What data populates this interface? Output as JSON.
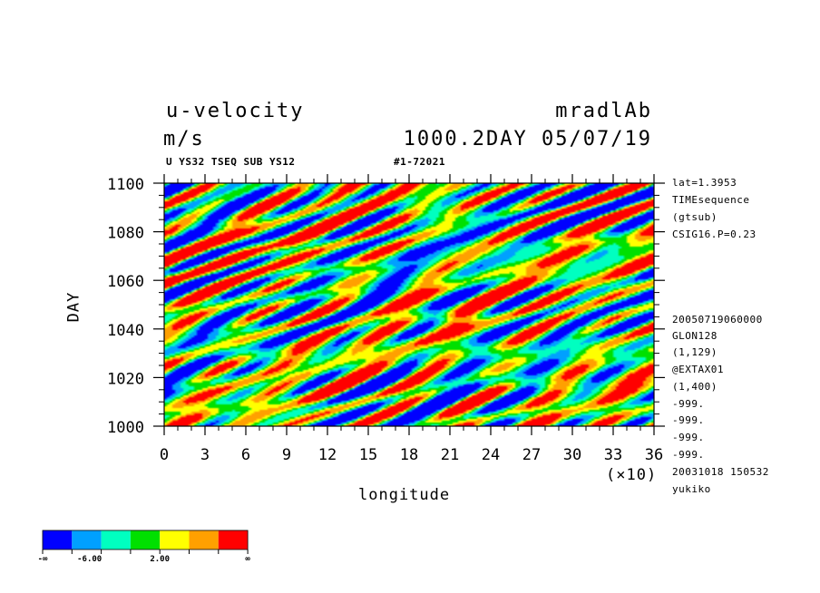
{
  "header": {
    "title_left_1": "u-velocity",
    "title_left_2": "m/s",
    "title_right_1": "mradlAb",
    "title_right_2": "1000.2DAY 05/07/19",
    "subtitle_left": "U YS32 TSEQ SUB YS12",
    "subtitle_right": "#1-72021"
  },
  "side_info": {
    "top": [
      "lat=1.3953",
      "TIMEsequence",
      "(gtsub)",
      "CSIG16.P=0.23"
    ],
    "bottom": [
      "20050719060000",
      "GLON128",
      "(1,129)",
      "@EXTAX01",
      "(1,400)",
      "-999.",
      "-999.",
      "-999.",
      "-999.",
      "20031018 150532",
      "yukiko"
    ]
  },
  "chart_data": {
    "type": "heatmap",
    "title": "u-velocity",
    "units": "m/s",
    "xlabel": "longitude",
    "x_multiplier_label": "(×10)",
    "ylabel": "DAY",
    "xlim": [
      0,
      36
    ],
    "ylim": [
      1000,
      1100
    ],
    "x_ticks": [
      0,
      3,
      6,
      9,
      12,
      15,
      18,
      21,
      24,
      27,
      30,
      33,
      36
    ],
    "x_tick_labels": [
      "0",
      "3",
      "6",
      "9",
      "12",
      "15",
      "18",
      "21",
      "24",
      "27",
      "30",
      "33",
      "36"
    ],
    "y_ticks": [
      1000,
      1020,
      1040,
      1060,
      1080,
      1100
    ],
    "y_tick_labels": [
      "1000",
      "1020",
      "1040",
      "1060",
      "1080",
      "1100"
    ],
    "colorbar": {
      "colors": [
        "#0000ff",
        "#00a0ff",
        "#00ffc0",
        "#00e000",
        "#ffff00",
        "#ffa000",
        "#ff0000"
      ],
      "labels": [
        "-∞",
        "-6.00",
        "2.00",
        "∞"
      ]
    }
  },
  "colors": {
    "blue": "#0000ff",
    "light_blue": "#00a0ff",
    "cyan": "#00ffc0",
    "green": "#00e000",
    "yellow": "#ffff00",
    "orange": "#ffa000",
    "red": "#ff0000"
  }
}
